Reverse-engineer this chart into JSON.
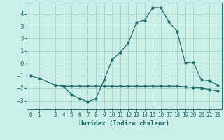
{
  "title": "",
  "xlabel": "Humidex (Indice chaleur)",
  "ylabel": "",
  "background_color": "#cceee8",
  "grid_color": "#aad4ce",
  "line_color": "#1a6b6b",
  "xlim": [
    -0.5,
    23.5
  ],
  "ylim": [
    -3.7,
    4.9
  ],
  "yticks": [
    -3,
    -2,
    -1,
    0,
    1,
    2,
    3,
    4
  ],
  "xticks": [
    0,
    1,
    3,
    4,
    5,
    6,
    7,
    8,
    9,
    10,
    11,
    12,
    13,
    14,
    15,
    16,
    17,
    18,
    19,
    20,
    21,
    22,
    23
  ],
  "line1_x": [
    0,
    1,
    3,
    4,
    5,
    6,
    7,
    8,
    9,
    10,
    11,
    12,
    13,
    14,
    15,
    16,
    17,
    18,
    19,
    20,
    21,
    22,
    23
  ],
  "line1_y": [
    -1.0,
    -1.2,
    -1.75,
    -1.85,
    -2.5,
    -2.85,
    -3.1,
    -2.85,
    -1.35,
    0.3,
    0.9,
    1.65,
    3.3,
    3.5,
    4.5,
    4.5,
    3.35,
    2.6,
    0.05,
    0.1,
    -1.35,
    -1.4,
    -1.75
  ],
  "line2_x": [
    3,
    4,
    5,
    6,
    7,
    8,
    9,
    10,
    11,
    12,
    13,
    14,
    15,
    16,
    17,
    18,
    19,
    20,
    21,
    22,
    23
  ],
  "line2_y": [
    -1.75,
    -1.85,
    -1.85,
    -1.85,
    -1.85,
    -1.85,
    -1.85,
    -1.85,
    -1.85,
    -1.85,
    -1.85,
    -1.85,
    -1.85,
    -1.85,
    -1.85,
    -1.85,
    -1.9,
    -1.95,
    -2.0,
    -2.1,
    -2.25
  ]
}
